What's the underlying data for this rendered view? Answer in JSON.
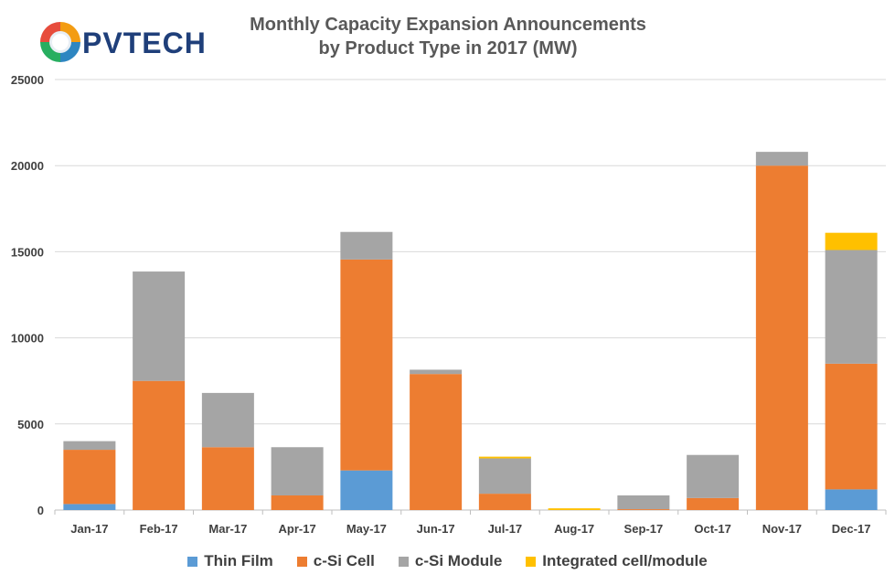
{
  "logo": {
    "text": "PVTECH",
    "icon": "pvtech-logo-icon"
  },
  "chart_data": {
    "type": "bar",
    "stacked": true,
    "title": [
      "Monthly Capacity Expansion Announcements",
      "by Product Type in 2017 (MW)"
    ],
    "categories": [
      "Jan-17",
      "Feb-17",
      "Mar-17",
      "Apr-17",
      "May-17",
      "Jun-17",
      "Jul-17",
      "Aug-17",
      "Sep-17",
      "Oct-17",
      "Nov-17",
      "Dec-17"
    ],
    "yticks": [
      "0",
      "5000",
      "10000",
      "15000",
      "20000",
      "25000"
    ],
    "ylim": [
      0,
      25000
    ],
    "grid": true,
    "legend_position": "bottom",
    "series": [
      {
        "name": "Thin Film",
        "color": "#5b9bd5",
        "values": [
          350,
          0,
          0,
          0,
          2300,
          0,
          0,
          0,
          0,
          0,
          0,
          1200
        ]
      },
      {
        "name": "c-Si Cell",
        "color": "#ed7d31",
        "values": [
          3150,
          7500,
          3650,
          850,
          12250,
          7900,
          950,
          0,
          50,
          700,
          20000,
          7300
        ]
      },
      {
        "name": "c-Si Module",
        "color": "#a5a5a5",
        "values": [
          500,
          6350,
          3150,
          2800,
          1600,
          250,
          2050,
          0,
          800,
          2500,
          800,
          6600
        ]
      },
      {
        "name": "Integrated cell/module",
        "color": "#ffc000",
        "values": [
          0,
          0,
          0,
          0,
          0,
          0,
          100,
          100,
          0,
          0,
          0,
          1000
        ]
      }
    ]
  }
}
